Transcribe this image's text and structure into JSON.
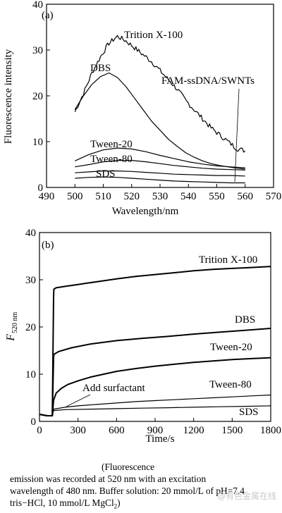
{
  "chart_data": [
    {
      "type": "line",
      "panel_label": "(a)",
      "xlabel": "Wavelength/nm",
      "ylabel": "Fluorescence intensity",
      "xlim": [
        490,
        570
      ],
      "ylim": [
        0,
        40
      ],
      "xticks": [
        "490",
        "500",
        "510",
        "520",
        "530",
        "540",
        "550",
        "560",
        "570"
      ],
      "yticks": [
        "0",
        "10",
        "20",
        "30",
        "40"
      ],
      "grid": false,
      "series": [
        {
          "name": "Trition X-100",
          "noisy": true,
          "x": [
            500,
            503,
            506,
            509,
            512,
            515,
            518,
            521,
            524,
            527,
            530,
            533,
            536,
            539,
            542,
            545,
            548,
            551,
            554,
            557,
            560
          ],
          "y": [
            16.5,
            20.5,
            25,
            28.5,
            31.5,
            33,
            32,
            30.5,
            29,
            27.5,
            25.5,
            23.5,
            21.5,
            19,
            17,
            15,
            13,
            11.5,
            10,
            8.5,
            8
          ]
        },
        {
          "name": "DBS",
          "x": [
            500,
            503,
            506,
            509,
            512,
            515,
            518,
            521,
            524,
            527,
            530,
            533,
            536,
            539,
            542,
            545,
            548,
            551,
            554,
            557,
            560
          ],
          "y": [
            17,
            20,
            22.5,
            24.2,
            25,
            24,
            22,
            19.5,
            17,
            14.5,
            12.5,
            10.5,
            9,
            7.6,
            6.6,
            5.8,
            5.2,
            4.8,
            4.5,
            4.2,
            4
          ]
        },
        {
          "name": "Tween-20",
          "x": [
            500,
            505,
            510,
            515,
            520,
            525,
            530,
            535,
            540,
            545,
            550,
            555,
            560
          ],
          "y": [
            5.8,
            7.2,
            8.2,
            8.6,
            8.4,
            7.8,
            7,
            6.3,
            5.6,
            5.1,
            4.7,
            4.5,
            4.3
          ]
        },
        {
          "name": "Tween-80",
          "x": [
            500,
            505,
            510,
            515,
            520,
            525,
            530,
            535,
            540,
            545,
            550,
            555,
            560
          ],
          "y": [
            4.5,
            5,
            5.6,
            5.9,
            5.9,
            5.6,
            5.2,
            4.8,
            4.5,
            4.2,
            4,
            3.9,
            3.8
          ]
        },
        {
          "name": "SDS",
          "x": [
            500,
            505,
            510,
            515,
            520,
            525,
            530,
            535,
            540,
            545,
            550,
            555,
            560
          ],
          "y": [
            3.2,
            3.4,
            3.6,
            3.6,
            3.5,
            3.3,
            3.1,
            2.9,
            2.8,
            2.7,
            2.6,
            2.6,
            2.5
          ]
        },
        {
          "name": "FAM-ssDNA/SWNTs",
          "x": [
            500,
            505,
            510,
            515,
            520,
            525,
            530,
            535,
            540,
            545,
            550,
            555,
            560
          ],
          "y": [
            2,
            2.2,
            2.3,
            2.2,
            2,
            1.8,
            1.6,
            1.4,
            1.3,
            1.2,
            1.1,
            1,
            1
          ]
        }
      ],
      "annotations": [
        "Trition X-100",
        "DBS",
        "Tween-20",
        "Tween-80",
        "SDS",
        "FAM-ssDNA/SWNTs"
      ]
    },
    {
      "type": "line",
      "panel_label": "(b)",
      "xlabel": "Time/s",
      "ylabel": "F",
      "ylabel_subscript": "520 nm",
      "xlim": [
        0,
        1800
      ],
      "ylim": [
        0,
        40
      ],
      "xticks": [
        "0",
        "300",
        "600",
        "900",
        "1200",
        "1500",
        "1800"
      ],
      "yticks": [
        "0",
        "10",
        "20",
        "30",
        "40"
      ],
      "grid": false,
      "series": [
        {
          "name": "Trition X-100",
          "x": [
            0,
            60,
            100,
            110,
            112,
            130,
            200,
            300,
            450,
            600,
            750,
            900,
            1050,
            1200,
            1350,
            1500,
            1650,
            1800
          ],
          "y": [
            1.5,
            1.2,
            1.2,
            26.5,
            28,
            28.3,
            28.6,
            29,
            29.6,
            30.2,
            30.7,
            31.1,
            31.5,
            31.9,
            32.2,
            32.4,
            32.6,
            32.8
          ]
        },
        {
          "name": "DBS",
          "x": [
            0,
            60,
            100,
            110,
            112,
            150,
            250,
            400,
            600,
            800,
            1000,
            1200,
            1400,
            1600,
            1800
          ],
          "y": [
            1.5,
            1.2,
            1.2,
            13.5,
            14.2,
            14.8,
            15.6,
            16.4,
            17.1,
            17.6,
            18,
            18.5,
            18.9,
            19.3,
            19.7
          ]
        },
        {
          "name": "Tween-20",
          "x": [
            0,
            60,
            100,
            110,
            130,
            170,
            220,
            300,
            400,
            500,
            600,
            750,
            900,
            1050,
            1200,
            1350,
            1500,
            1650,
            1800
          ],
          "y": [
            1.5,
            1.2,
            1.2,
            4.5,
            6,
            7,
            7.8,
            8.6,
            9.4,
            10,
            10.6,
            11.2,
            11.7,
            12.1,
            12.5,
            12.8,
            13.1,
            13.3,
            13.5
          ]
        },
        {
          "name": "Tween-80",
          "x": [
            0,
            60,
            100,
            110,
            200,
            300,
            450,
            600,
            750,
            900,
            1050,
            1200,
            1350,
            1500,
            1650,
            1800
          ],
          "y": [
            1.5,
            1.2,
            1.2,
            2.6,
            3,
            3.3,
            3.6,
            3.9,
            4.2,
            4.4,
            4.6,
            4.8,
            5,
            5.2,
            5.4,
            5.6
          ]
        },
        {
          "name": "SDS",
          "x": [
            0,
            60,
            100,
            110,
            200,
            400,
            600,
            800,
            1000,
            1200,
            1400,
            1600,
            1800
          ],
          "y": [
            1.5,
            1.2,
            1.2,
            2.3,
            2.5,
            2.6,
            2.7,
            2.8,
            2.9,
            3,
            3.1,
            3.2,
            3.3
          ]
        }
      ],
      "annotations": [
        "Trition X-100",
        "DBS",
        "Tween-20",
        "Tween-80",
        "SDS",
        "Add surfactant"
      ]
    }
  ],
  "caption": {
    "line1": "(Fluorescence",
    "line2": "emission was recorded at 520 nm with an excitation",
    "line3": "wavelength of 480 nm. Buffer solution: 20 mmol/L of pH=7.4",
    "line4": "tris−HCl, 10 mmol/L MgCl",
    "line4_sub": "2",
    "line4_end": ")"
  },
  "watermark": "@有色金属在线"
}
